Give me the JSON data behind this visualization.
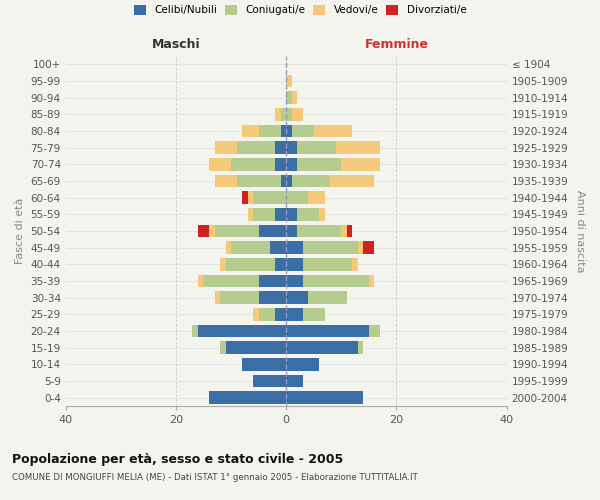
{
  "age_groups": [
    "100+",
    "95-99",
    "90-94",
    "85-89",
    "80-84",
    "75-79",
    "70-74",
    "65-69",
    "60-64",
    "55-59",
    "50-54",
    "45-49",
    "40-44",
    "35-39",
    "30-34",
    "25-29",
    "20-24",
    "15-19",
    "10-14",
    "5-9",
    "0-4"
  ],
  "birth_years": [
    "≤ 1904",
    "1905-1909",
    "1910-1914",
    "1915-1919",
    "1920-1924",
    "1925-1929",
    "1930-1934",
    "1935-1939",
    "1940-1944",
    "1945-1949",
    "1950-1954",
    "1955-1959",
    "1960-1964",
    "1965-1969",
    "1970-1974",
    "1975-1979",
    "1980-1984",
    "1985-1989",
    "1990-1994",
    "1995-1999",
    "2000-2004"
  ],
  "maschi_celibi": [
    0,
    0,
    0,
    0,
    1,
    2,
    2,
    1,
    0,
    2,
    5,
    3,
    2,
    5,
    5,
    2,
    16,
    11,
    8,
    6,
    14
  ],
  "maschi_coniugati": [
    0,
    0,
    0,
    1,
    4,
    7,
    8,
    8,
    6,
    4,
    8,
    7,
    9,
    10,
    7,
    3,
    1,
    1,
    0,
    0,
    0
  ],
  "maschi_vedovi": [
    0,
    0,
    0,
    1,
    3,
    4,
    4,
    4,
    1,
    1,
    1,
    1,
    1,
    1,
    1,
    1,
    0,
    0,
    0,
    0,
    0
  ],
  "maschi_divorziati": [
    0,
    0,
    0,
    0,
    0,
    0,
    0,
    0,
    1,
    0,
    2,
    0,
    0,
    0,
    0,
    0,
    0,
    0,
    0,
    0,
    0
  ],
  "femmine_nubili": [
    0,
    0,
    0,
    0,
    1,
    2,
    2,
    1,
    0,
    2,
    2,
    3,
    3,
    3,
    4,
    3,
    15,
    13,
    6,
    3,
    14
  ],
  "femmine_coniugate": [
    0,
    0,
    1,
    1,
    4,
    7,
    8,
    7,
    4,
    4,
    8,
    10,
    9,
    12,
    7,
    4,
    2,
    1,
    0,
    0,
    0
  ],
  "femmine_vedove": [
    0,
    1,
    1,
    2,
    7,
    8,
    7,
    8,
    3,
    1,
    1,
    1,
    1,
    1,
    0,
    0,
    0,
    0,
    0,
    0,
    0
  ],
  "femmine_divorziate": [
    0,
    0,
    0,
    0,
    0,
    0,
    0,
    0,
    0,
    0,
    1,
    2,
    0,
    0,
    0,
    0,
    0,
    0,
    0,
    0,
    0
  ],
  "color_celibi": "#3a6ea5",
  "color_coniugati": "#b5cc8e",
  "color_vedovi": "#f5c97a",
  "color_divorziati": "#cc2222",
  "xlim": 40,
  "bg_color": "#f4f4ee",
  "title": "Popolazione per età, sesso e stato civile - 2005",
  "subtitle": "COMUNE DI MONGIUFFI MELIA (ME) - Dati ISTAT 1° gennaio 2005 - Elaborazione TUTTITALIA.IT",
  "legend_labels": [
    "Celibi/Nubili",
    "Coniugati/e",
    "Vedovi/e",
    "Divorziati/e"
  ],
  "label_maschi": "Maschi",
  "label_femmine": "Femmine",
  "label_fasce": "Fasce di età",
  "label_anni": "Anni di nascita"
}
